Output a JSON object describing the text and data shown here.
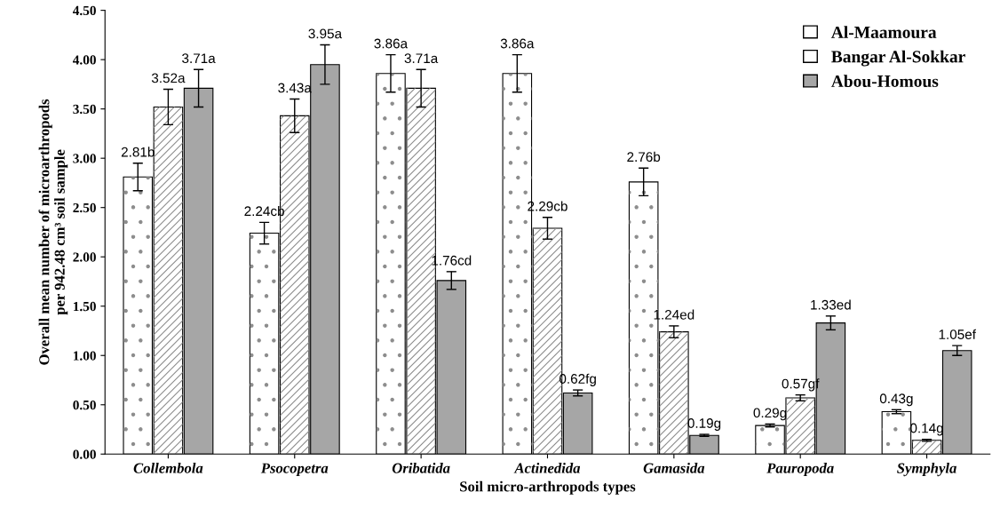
{
  "chart_data": {
    "type": "bar",
    "xlabel": "Soil micro-arthropods types",
    "ylabel": "Overall mean number of microarthropods\nper 942.48 cm³ soil sample",
    "categories": [
      "Collembola",
      "Psocopetra",
      "Oribatida",
      "Actinedida",
      "Gamasida",
      "Pauropoda",
      "Symphyla"
    ],
    "series": [
      {
        "name": "Al-Maamoura",
        "color": "#ffffff",
        "values": [
          2.81,
          2.24,
          3.86,
          3.86,
          2.76,
          0.29,
          0.43
        ],
        "errors": [
          0.14,
          0.11,
          0.19,
          0.19,
          0.14,
          0.015,
          0.02
        ],
        "value_labels": [
          "2.81b",
          "2.24cb",
          "3.86a",
          "3.86a",
          "2.76b",
          "0.29g",
          "0.43g"
        ]
      },
      {
        "name": "Bangar Al-Sokkar",
        "color": "#ffffff",
        "values": [
          3.52,
          3.43,
          3.71,
          2.29,
          1.24,
          0.57,
          0.14
        ],
        "errors": [
          0.18,
          0.17,
          0.19,
          0.11,
          0.06,
          0.03,
          0.01
        ],
        "value_labels": [
          "3.52a",
          "3.43a",
          "3.71a",
          "2.29cb",
          "1.24ed",
          "0.57gf",
          "0.14g"
        ]
      },
      {
        "name": "Abou-Homous",
        "color": "#a6a6a6",
        "values": [
          3.71,
          3.95,
          1.76,
          0.62,
          0.19,
          1.33,
          1.05
        ],
        "errors": [
          0.19,
          0.2,
          0.09,
          0.03,
          0.01,
          0.07,
          0.05
        ],
        "value_labels": [
          "3.71a",
          "3.95a",
          "1.76cd",
          "0.62fg",
          "0.19g",
          "1.33ed",
          "1.05ef"
        ]
      }
    ],
    "ylim": [
      0,
      4.5
    ],
    "yticks": [
      {
        "value": 0,
        "label": "0.00"
      },
      {
        "value": 0.5,
        "label": "0.50"
      },
      {
        "value": 1,
        "label": "1.00"
      },
      {
        "value": 1.5,
        "label": "1.50"
      },
      {
        "value": 2,
        "label": "2.00"
      },
      {
        "value": 2.5,
        "label": "2.50"
      },
      {
        "value": 3,
        "label": "3.00"
      },
      {
        "value": 3.5,
        "label": "3.50"
      },
      {
        "value": 4,
        "label": "4.00"
      },
      {
        "value": 4.5,
        "label": "4.50"
      }
    ],
    "legend": "top right",
    "grid": false
  }
}
